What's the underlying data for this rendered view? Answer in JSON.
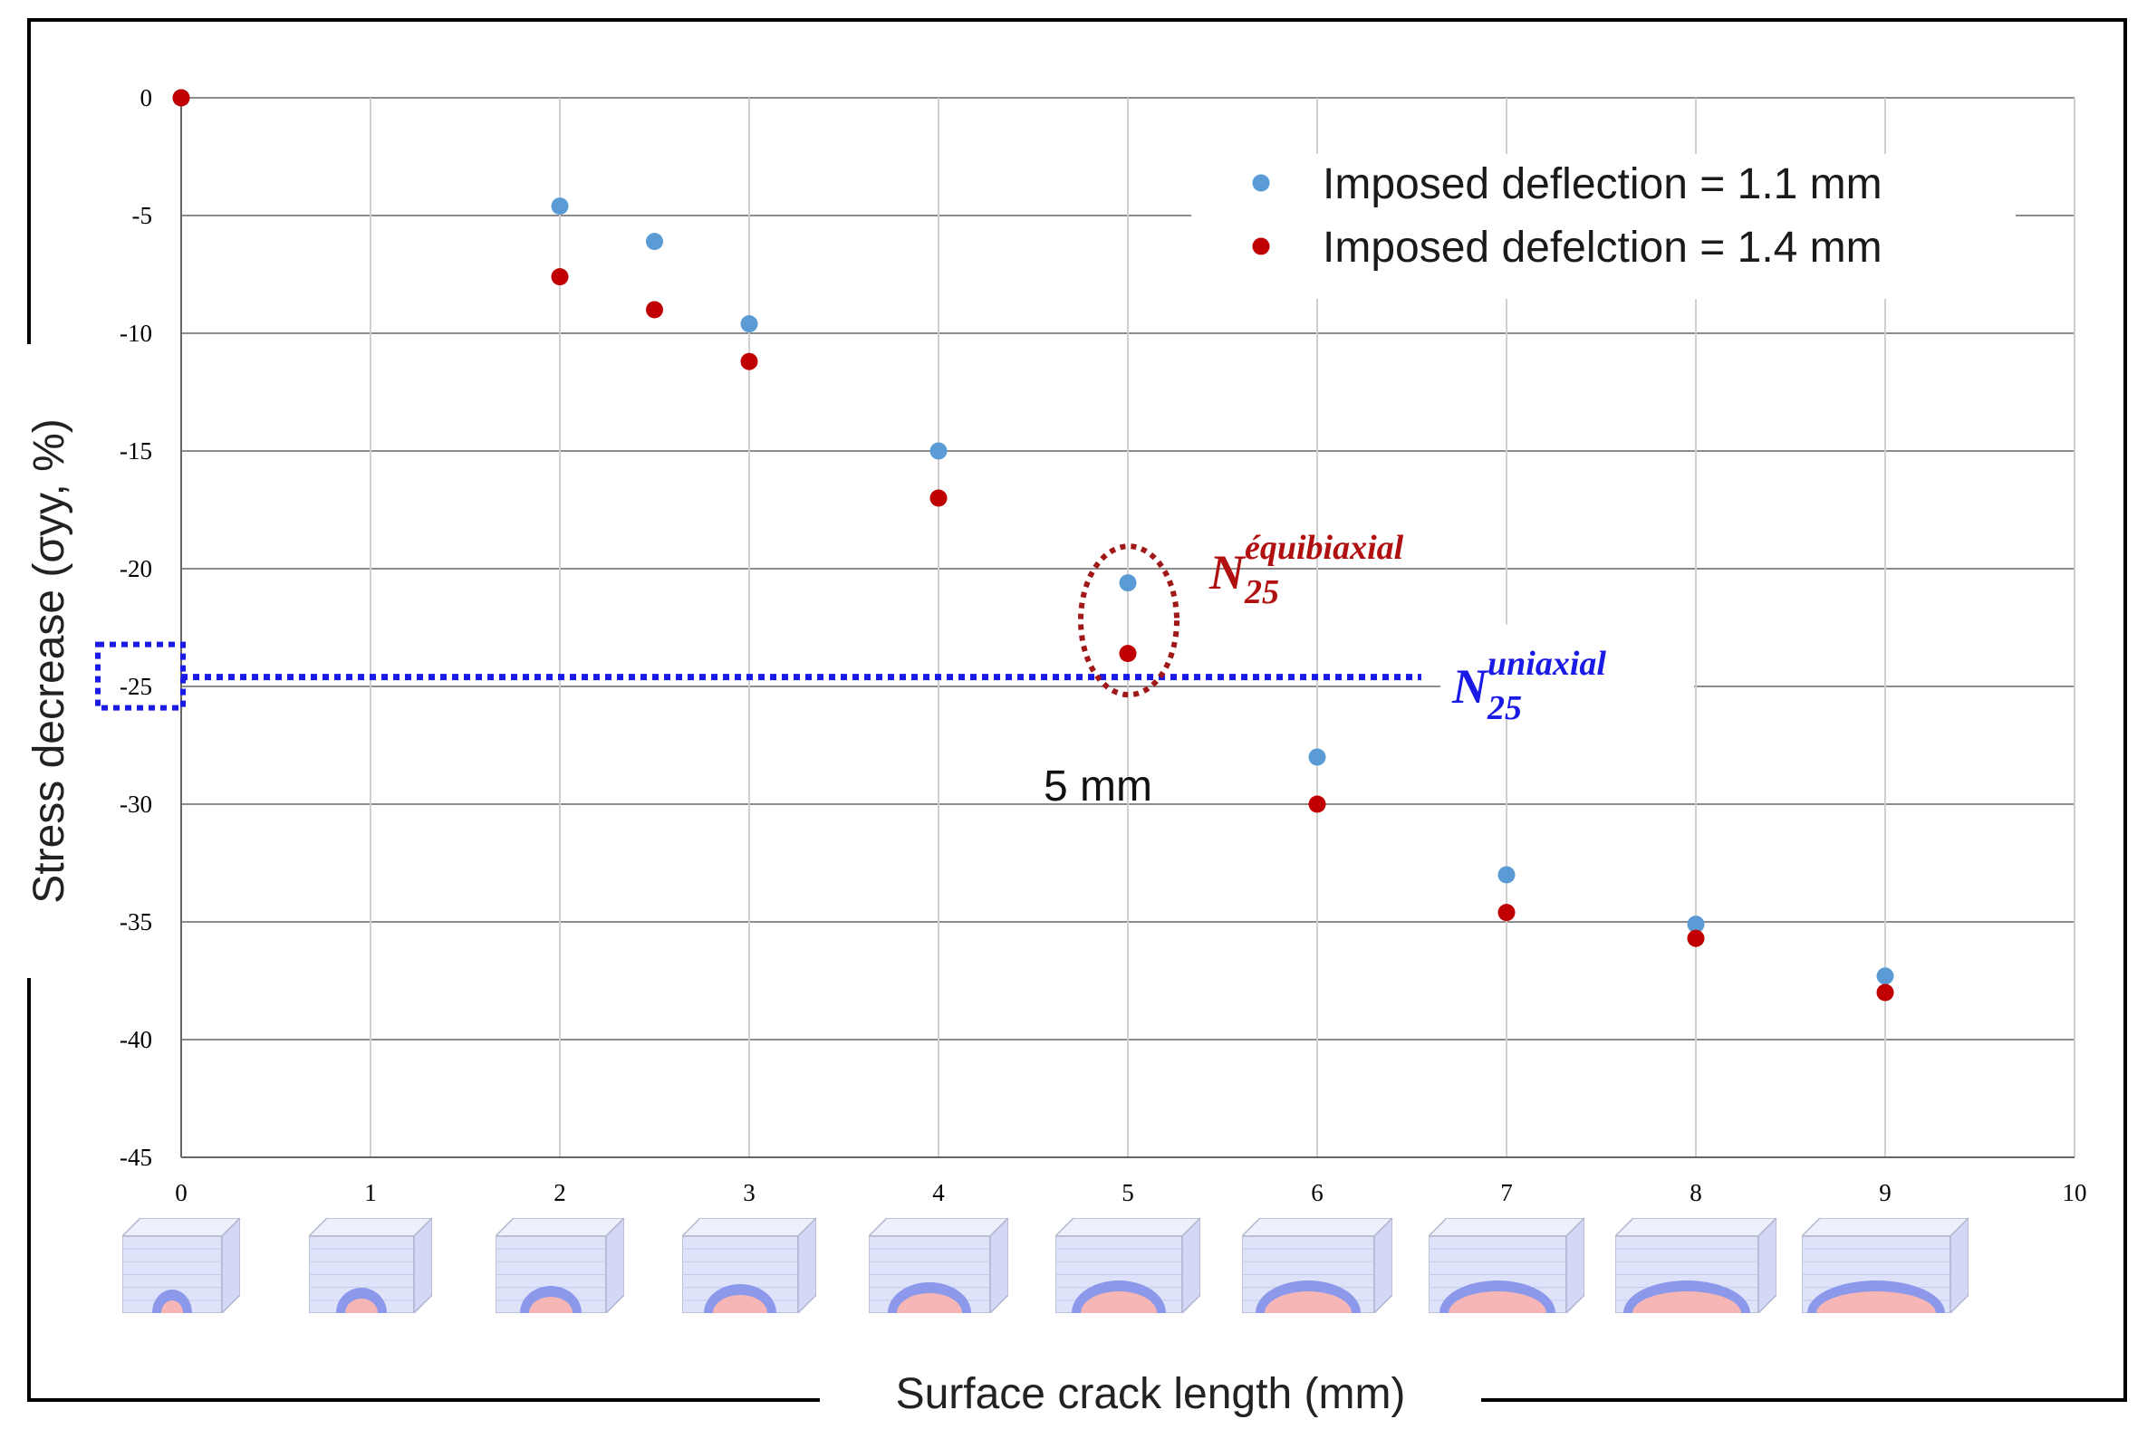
{
  "chart_data": {
    "type": "scatter",
    "xlabel": "Surface crack length (mm)",
    "ylabel": "Stress decrease (σyy, %)",
    "xlim": [
      0,
      10
    ],
    "ylim": [
      -45,
      0
    ],
    "x_ticks": [
      "0",
      "1",
      "2",
      "3",
      "4",
      "5",
      "6",
      "7",
      "8",
      "9",
      "10"
    ],
    "y_ticks": [
      "0",
      "-5",
      "-10",
      "-15",
      "-20",
      "-25",
      "-30",
      "-35",
      "-40",
      "-45"
    ],
    "grid": true,
    "legend_position": "top-right",
    "series": [
      {
        "name": "Imposed deflection = 1.1 mm",
        "color": "#5b9bd5",
        "x": [
          0,
          2,
          2.5,
          3,
          4,
          5,
          6,
          7,
          8,
          9
        ],
        "y": [
          0,
          -4.6,
          -6.1,
          -9.6,
          -15.0,
          -20.6,
          -28.0,
          -33.0,
          -35.1,
          -37.3
        ]
      },
      {
        "name": "Imposed defelction = 1.4 mm",
        "color": "#c00000",
        "x": [
          0,
          2,
          2.5,
          3,
          4,
          5,
          6,
          7,
          8,
          9
        ],
        "y": [
          0,
          -7.6,
          -9.0,
          -11.2,
          -17.0,
          -23.6,
          -30.0,
          -34.6,
          -35.7,
          -38.0
        ]
      }
    ],
    "reference_line": {
      "y": -24.6,
      "color": "#1a1ae6",
      "style": "dotted"
    },
    "annotations": {
      "equibiaxial": {
        "base": "N",
        "sub": "25",
        "sup": "équibiaxial",
        "color": "#b01010"
      },
      "uniaxial": {
        "base": "N",
        "sub": "25",
        "sup": "uniaxial",
        "color": "#1a1ae6"
      },
      "crack_label": "5 mm"
    },
    "thumbnail_positions": [
      0,
      1,
      2,
      3,
      4,
      5,
      6,
      7,
      8,
      9
    ]
  }
}
